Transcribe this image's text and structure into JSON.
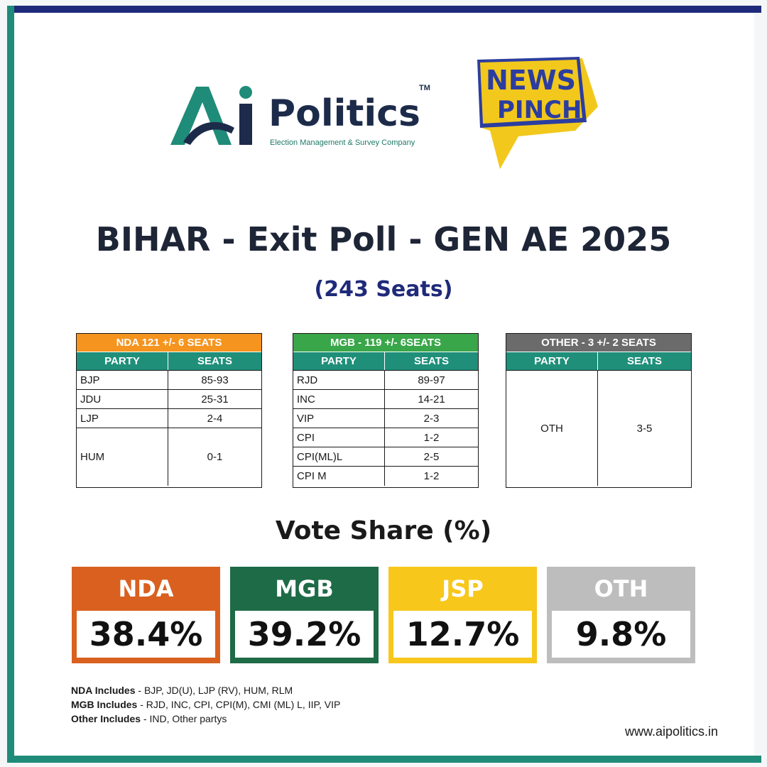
{
  "brand": {
    "ai_word": "Politics",
    "ai_tm": "TM",
    "ai_tagline": "Election Management & Survey Company",
    "news_line1": "NEWS",
    "news_line2": "PINCH"
  },
  "headline": "BIHAR - Exit Poll - GEN AE 2025",
  "subhead": "(243 Seats)",
  "tables": [
    {
      "title": "NDA  121 +/- 6 SEATS",
      "color": "#f5941e",
      "col_party": "PARTY",
      "col_seats": "SEATS",
      "rows": [
        {
          "party": "BJP",
          "seats": "85-93"
        },
        {
          "party": "JDU",
          "seats": "25-31"
        },
        {
          "party": "LJP",
          "seats": "2-4"
        },
        {
          "party": "HUM",
          "seats": "0-1"
        }
      ]
    },
    {
      "title": "MGB - 119 +/-  6SEATS",
      "color": "#3aa64a",
      "col_party": "PARTY",
      "col_seats": "SEATS",
      "rows": [
        {
          "party": "RJD",
          "seats": "89-97"
        },
        {
          "party": "INC",
          "seats": "14-21"
        },
        {
          "party": "VIP",
          "seats": "2-3"
        },
        {
          "party": "CPI",
          "seats": "1-2"
        },
        {
          "party": "CPI(ML)L",
          "seats": "2-5"
        },
        {
          "party": "CPI M",
          "seats": "1-2"
        }
      ]
    },
    {
      "title": "OTHER - 3  +/- 2 SEATS",
      "color": "#6b6b6b",
      "col_party": "PARTY",
      "col_seats": "SEATS",
      "rows": [
        {
          "party": "OTH",
          "seats": "3-5"
        }
      ]
    }
  ],
  "vote_share": {
    "title": "Vote Share (%)",
    "cards": [
      {
        "label": "NDA",
        "value": "38.4%",
        "color": "#d9601f"
      },
      {
        "label": "MGB",
        "value": "39.2%",
        "color": "#1e6b47"
      },
      {
        "label": "JSP",
        "value": "12.7%",
        "color": "#f7c71c"
      },
      {
        "label": "OTH",
        "value": "9.8%",
        "color": "#bdbdbd"
      }
    ]
  },
  "notes": [
    {
      "key": "NDA Includes",
      "value": " - BJP, JD(U), LJP (RV), HUM, RLM"
    },
    {
      "key": "MGB Includes",
      "value": " - RJD, INC, CPI, CPI(M), CMI (ML) L, IIP, VIP"
    },
    {
      "key": "Other Includes",
      "value": " - IND, Other partys"
    }
  ],
  "website": "www.aipolitics.in"
}
